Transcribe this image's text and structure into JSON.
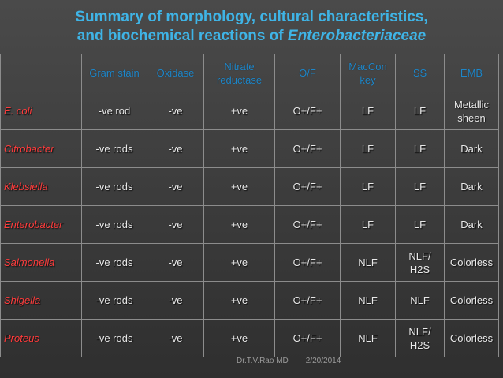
{
  "title": {
    "line1": "Summary of  morphology, cultural characteristics,",
    "line2_prefix": "and biochemical reactions of ",
    "line2_italic": "Enterobacteriaceae"
  },
  "table": {
    "headers": [
      "",
      "Gram stain",
      "Oxidase",
      "Nitrate reductase",
      "O/F",
      "MacCon key",
      "SS",
      "EMB"
    ],
    "rows": [
      [
        "E. coli",
        "-ve rod",
        "-ve",
        "+ve",
        "O+/F+",
        "LF",
        "LF",
        "Metallic sheen"
      ],
      [
        "Citrobacter",
        "-ve rods",
        "-ve",
        "+ve",
        "O+/F+",
        "LF",
        "LF",
        "Dark"
      ],
      [
        "Klebsiella",
        "-ve rods",
        "-ve",
        "+ve",
        "O+/F+",
        "LF",
        "LF",
        "Dark"
      ],
      [
        "Enterobacter",
        "-ve rods",
        "-ve",
        "+ve",
        "O+/F+",
        "LF",
        "LF",
        "Dark"
      ],
      [
        "Salmonella",
        "-ve rods",
        "-ve",
        "+ve",
        "O+/F+",
        "NLF",
        "NLF/ H2S",
        "Colorless"
      ],
      [
        "Shigella",
        "-ve rods",
        "-ve",
        "+ve",
        "O+/F+",
        "NLF",
        "NLF",
        "Colorless"
      ],
      [
        "Proteus",
        "-ve rods",
        "-ve",
        "+ve",
        "O+/F+",
        "NLF",
        "NLF/ H2S",
        "Colorless"
      ]
    ]
  },
  "footer": {
    "author": "Dr.T.V.Rao MD",
    "date": "2/20/2014"
  },
  "colors": {
    "title": "#3fb4e6",
    "header_text": "#1e86c8",
    "organism_text": "#ff3b3b",
    "cell_text": "#e8e8e8",
    "background": "#3a3a3a"
  }
}
